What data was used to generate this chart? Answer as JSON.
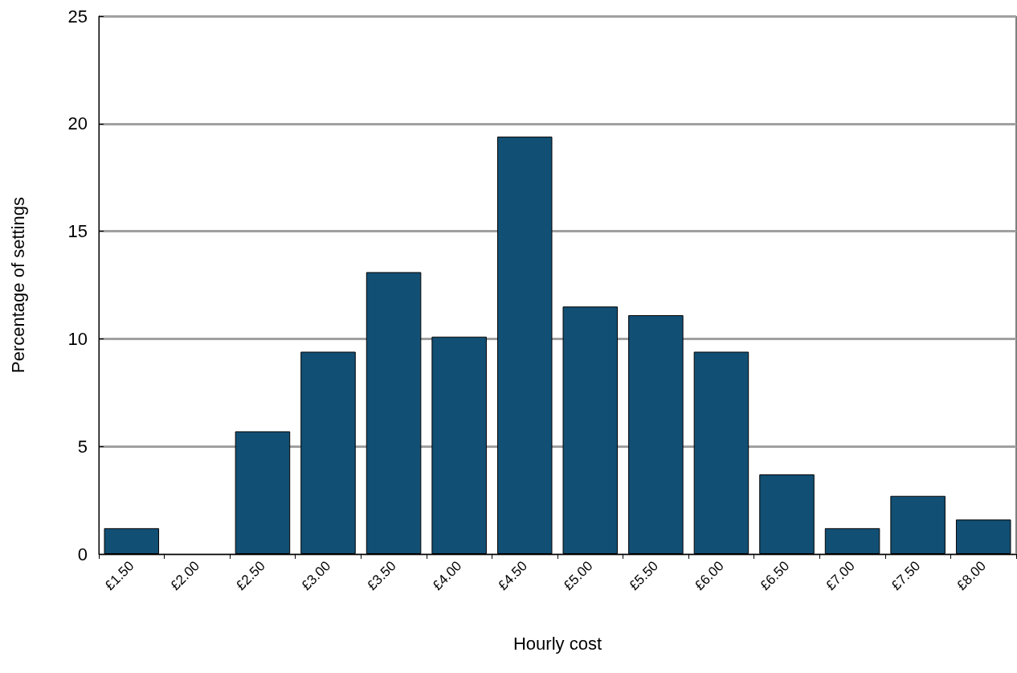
{
  "chart_data": {
    "type": "bar",
    "xlabel": "Hourly cost",
    "ylabel": "Percentage of settings",
    "categories": [
      "£1.50",
      "£2.00",
      "£2.50",
      "£3.00",
      "£3.50",
      "£4.00",
      "£4.50",
      "£5.00",
      "£5.50",
      "£6.00",
      "£6.50",
      "£7.00",
      "£7.50",
      "£8.00"
    ],
    "values": [
      1.2,
      0,
      5.7,
      9.4,
      13.1,
      10.1,
      19.4,
      11.5,
      11.1,
      9.4,
      3.7,
      1.2,
      2.7,
      1.6
    ],
    "color": "#124f74",
    "ylim": [
      0,
      25
    ],
    "yticks": [
      0,
      5,
      10,
      15,
      20,
      25
    ],
    "grid": "y"
  }
}
